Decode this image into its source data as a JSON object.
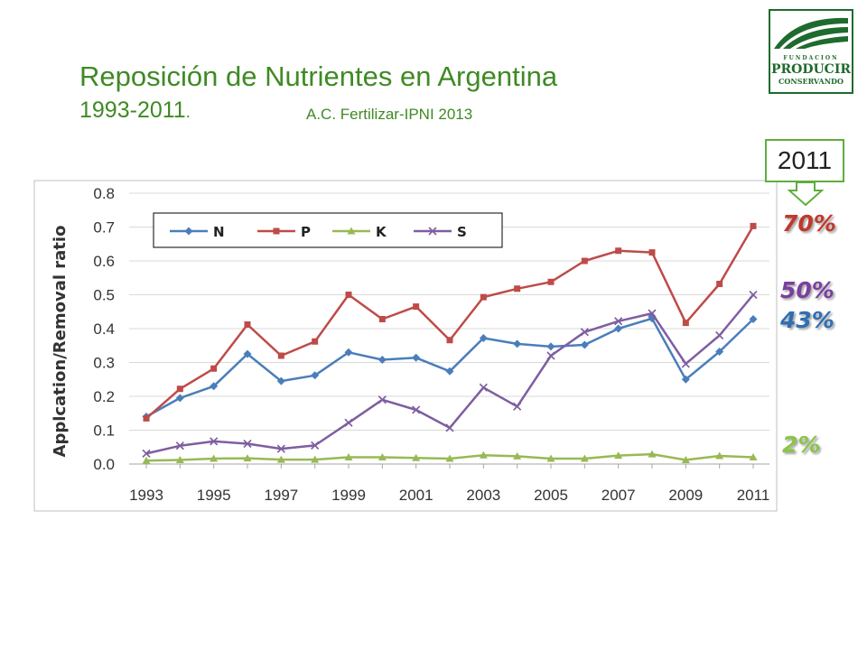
{
  "header": {
    "title": "Reposición de Nutrientes en Argentina",
    "subtitle": "1993-2011",
    "subtitle_dot": ".",
    "source": "A.C. Fertilizar-IPNI 2013"
  },
  "logo": {
    "line1": "FUNDACION",
    "line2": "PRODUCIR",
    "line3": "CONSERVANDO",
    "color": "#1f6b2e"
  },
  "callout": {
    "label": "2011"
  },
  "annotations": [
    {
      "label": "70%",
      "series": "P"
    },
    {
      "label": "50%",
      "series": "S"
    },
    {
      "label": "43%",
      "series": "N"
    },
    {
      "label": "2%",
      "series": "K"
    }
  ],
  "chart_data": {
    "type": "line",
    "ylabel": "Applcation/Removal ratio",
    "xlabel": "",
    "ylim": [
      0,
      0.8
    ],
    "yticks": [
      "0.0",
      "0.1",
      "0.2",
      "0.3",
      "0.4",
      "0.5",
      "0.6",
      "0.7",
      "0.8"
    ],
    "xticks": [
      "1993",
      "1995",
      "1997",
      "1999",
      "2001",
      "2003",
      "2005",
      "2007",
      "2009",
      "2011"
    ],
    "x": [
      1993,
      1994,
      1995,
      1996,
      1997,
      1998,
      1999,
      2000,
      2001,
      2002,
      2003,
      2004,
      2005,
      2006,
      2007,
      2008,
      2009,
      2010,
      2011
    ],
    "grid": true,
    "legend_position": "top-left",
    "series": [
      {
        "name": "N",
        "color": "#4a7ebb",
        "marker": "diamond",
        "values": [
          0.14,
          0.195,
          0.23,
          0.325,
          0.245,
          0.262,
          0.33,
          0.308,
          0.314,
          0.274,
          0.372,
          0.355,
          0.347,
          0.352,
          0.4,
          0.43,
          0.25,
          0.332,
          0.428
        ]
      },
      {
        "name": "P",
        "color": "#be4b48",
        "marker": "square",
        "values": [
          0.135,
          0.222,
          0.282,
          0.412,
          0.32,
          0.362,
          0.5,
          0.428,
          0.465,
          0.366,
          0.493,
          0.518,
          0.538,
          0.6,
          0.63,
          0.625,
          0.417,
          0.532,
          0.703
        ]
      },
      {
        "name": "K",
        "color": "#98b954",
        "marker": "triangle",
        "values": [
          0.01,
          0.012,
          0.016,
          0.017,
          0.013,
          0.013,
          0.02,
          0.02,
          0.018,
          0.016,
          0.026,
          0.023,
          0.016,
          0.016,
          0.025,
          0.029,
          0.012,
          0.024,
          0.02
        ]
      },
      {
        "name": "S",
        "color": "#7e5ea0",
        "marker": "x",
        "values": [
          0.031,
          0.054,
          0.067,
          0.06,
          0.045,
          0.055,
          0.122,
          0.19,
          0.16,
          0.107,
          0.226,
          0.17,
          0.32,
          0.39,
          0.422,
          0.445,
          0.296,
          0.38,
          0.5
        ]
      }
    ]
  }
}
